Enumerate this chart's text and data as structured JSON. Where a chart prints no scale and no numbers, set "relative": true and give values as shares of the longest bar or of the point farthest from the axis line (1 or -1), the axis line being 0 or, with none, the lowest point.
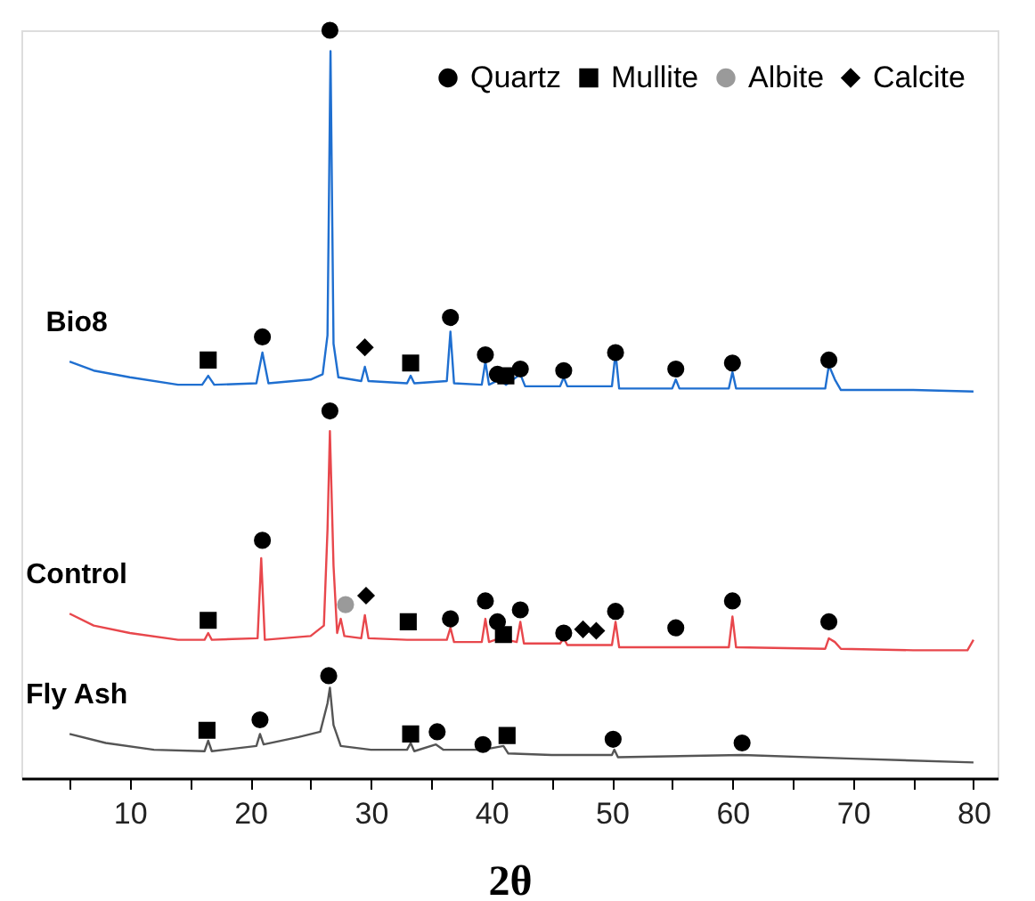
{
  "chart_data": {
    "type": "line",
    "relative": true,
    "xlabel": "2θ",
    "xlim": [
      1,
      82
    ],
    "xticks": [
      {
        "value": 5,
        "label": null
      },
      10,
      {
        "value": 15,
        "label": null
      },
      20,
      {
        "value": 25,
        "label": null
      },
      30,
      {
        "value": 35,
        "label": null
      },
      40,
      {
        "value": 45,
        "label": null
      },
      50,
      {
        "value": 55,
        "label": null
      },
      60,
      {
        "value": 65,
        "label": null
      },
      70,
      {
        "value": 75,
        "label": null
      },
      80
    ],
    "tick_labels": "x",
    "grid": false,
    "legend": "top right",
    "line_style": "solid",
    "series": [
      {
        "name": "Bio8",
        "color": "#1f6fd0",
        "x": [
          5,
          7,
          10,
          14,
          16,
          16.5,
          17,
          20.5,
          21,
          21.5,
          25,
          26,
          26.4,
          26.65,
          26.9,
          27.3,
          29.2,
          29.5,
          29.8,
          33,
          33.3,
          33.6,
          36.3,
          36.6,
          36.9,
          39.2,
          39.5,
          39.8,
          40.7,
          41.2,
          42.4,
          42.8,
          45.7,
          46,
          46.3,
          50,
          50.3,
          50.6,
          55,
          55.3,
          55.6,
          59.7,
          60,
          60.3,
          67.7,
          68,
          68.5,
          69,
          75,
          80
        ],
        "values": [
          0.557,
          0.545,
          0.536,
          0.526,
          0.526,
          0.538,
          0.526,
          0.528,
          0.569,
          0.528,
          0.533,
          0.54,
          0.592,
          0.972,
          0.581,
          0.536,
          0.531,
          0.55,
          0.531,
          0.528,
          0.538,
          0.528,
          0.531,
          0.597,
          0.528,
          0.526,
          0.557,
          0.526,
          0.533,
          0.526,
          0.54,
          0.524,
          0.524,
          0.536,
          0.524,
          0.524,
          0.569,
          0.521,
          0.521,
          0.533,
          0.521,
          0.521,
          0.543,
          0.521,
          0.521,
          0.552,
          0.533,
          0.519,
          0.519,
          0.517
        ]
      },
      {
        "name": "Control",
        "color": "#e8474c",
        "x": [
          5,
          7,
          10,
          14,
          16.2,
          16.5,
          16.8,
          20.6,
          20.9,
          21.2,
          25,
          26.1,
          26.4,
          26.6,
          26.9,
          27.2,
          27.5,
          27.8,
          29.2,
          29.5,
          29.8,
          33,
          36.3,
          36.6,
          36.9,
          39.2,
          39.5,
          39.8,
          40.7,
          42.1,
          42.4,
          42.7,
          45.7,
          46,
          46.3,
          50,
          50.3,
          50.6,
          55,
          59.7,
          60,
          60.3,
          67.7,
          68,
          68.5,
          69,
          75,
          79.5,
          80
        ],
        "values": [
          0.22,
          0.204,
          0.194,
          0.185,
          0.185,
          0.194,
          0.185,
          0.187,
          0.294,
          0.185,
          0.19,
          0.204,
          0.332,
          0.464,
          0.284,
          0.194,
          0.213,
          0.19,
          0.187,
          0.218,
          0.187,
          0.185,
          0.185,
          0.201,
          0.182,
          0.182,
          0.213,
          0.182,
          0.187,
          0.182,
          0.209,
          0.18,
          0.18,
          0.187,
          0.178,
          0.178,
          0.209,
          0.175,
          0.175,
          0.175,
          0.216,
          0.175,
          0.173,
          0.187,
          0.182,
          0.173,
          0.171,
          0.171,
          0.185
        ]
      },
      {
        "name": "Fly Ash",
        "color": "#555555",
        "x": [
          5,
          8,
          12,
          16.2,
          16.5,
          16.8,
          20.5,
          20.8,
          21.1,
          24,
          25.8,
          26.4,
          26.6,
          26.9,
          27.5,
          30,
          33,
          33.3,
          33.6,
          35.4,
          36,
          39.3,
          41,
          41.4,
          45,
          50,
          50.2,
          50.5,
          60.8,
          70,
          80
        ],
        "values": [
          0.059,
          0.047,
          0.038,
          0.036,
          0.05,
          0.036,
          0.043,
          0.059,
          0.045,
          0.055,
          0.062,
          0.1,
          0.121,
          0.071,
          0.043,
          0.038,
          0.038,
          0.047,
          0.036,
          0.045,
          0.038,
          0.038,
          0.043,
          0.033,
          0.031,
          0.031,
          0.038,
          0.028,
          0.031,
          0.026,
          0.021
        ]
      },
      {
        "name": "Quartz",
        "type": "scatter",
        "marker": "circle",
        "color": "#000000",
        "x": [
          26.6,
          21,
          36.6,
          39.5,
          40.5,
          42.4,
          46,
          50.3,
          55.3,
          60,
          68,
          26.6,
          21,
          36.6,
          39.5,
          40.5,
          42.4,
          46,
          50.3,
          55.3,
          60,
          68,
          26.5,
          20.8,
          35.5,
          39.3,
          50.1,
          60.8
        ],
        "values": [
          1.0,
          0.59,
          0.616,
          0.566,
          0.54,
          0.547,
          0.545,
          0.569,
          0.547,
          0.555,
          0.559,
          0.491,
          0.318,
          0.213,
          0.237,
          0.209,
          0.225,
          0.194,
          0.223,
          0.201,
          0.237,
          0.209,
          0.137,
          0.078,
          0.062,
          0.045,
          0.052,
          0.047
        ]
      },
      {
        "name": "Mullite",
        "type": "scatter",
        "marker": "square",
        "color": "#000000",
        "x": [
          16.5,
          33.3,
          41.2,
          16.5,
          33.1,
          41,
          16.4,
          33.3,
          41.3
        ],
        "values": [
          0.559,
          0.555,
          0.538,
          0.211,
          0.209,
          0.192,
          0.064,
          0.059,
          0.057
        ]
      },
      {
        "name": "Albite",
        "type": "scatter",
        "marker": "circle",
        "color": "#9a9a9a",
        "x": [
          27.9
        ],
        "values": [
          0.232
        ]
      },
      {
        "name": "Calcite",
        "type": "scatter",
        "marker": "diamond",
        "color": "#000000",
        "x": [
          29.5,
          29.6,
          47.6,
          48.7
        ],
        "values": [
          0.576,
          0.244,
          0.199,
          0.197
        ]
      }
    ]
  }
}
